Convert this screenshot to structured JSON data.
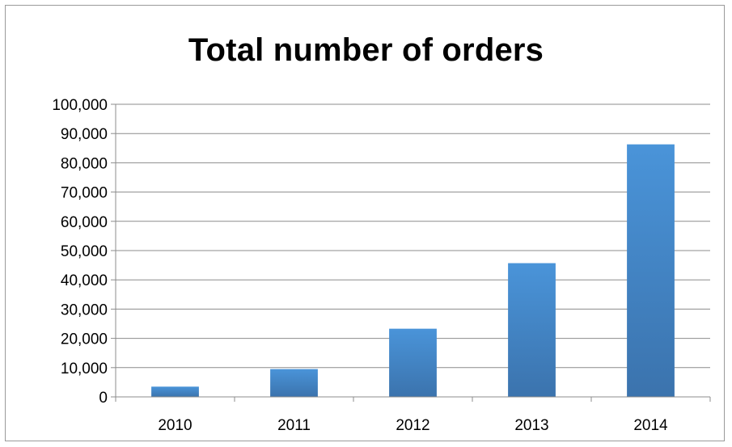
{
  "chart_data": {
    "type": "bar",
    "title": "Total number of orders",
    "xlabel": "",
    "ylabel": "",
    "categories": [
      "2010",
      "2011",
      "2012",
      "2013",
      "2014"
    ],
    "values": [
      3500,
      9500,
      23300,
      45700,
      86300
    ],
    "ylim": [
      0,
      100000
    ],
    "y_tick_step": 10000,
    "y_tick_labels": [
      "0",
      "10,000",
      "20,000",
      "30,000",
      "40,000",
      "50,000",
      "60,000",
      "70,000",
      "80,000",
      "90,000",
      "100,000"
    ],
    "grid": true,
    "legend": "none",
    "bar_color_top": "#4a94d9",
    "bar_color_bottom": "#3b73ad",
    "gridline_color": "#8c8c8c"
  }
}
